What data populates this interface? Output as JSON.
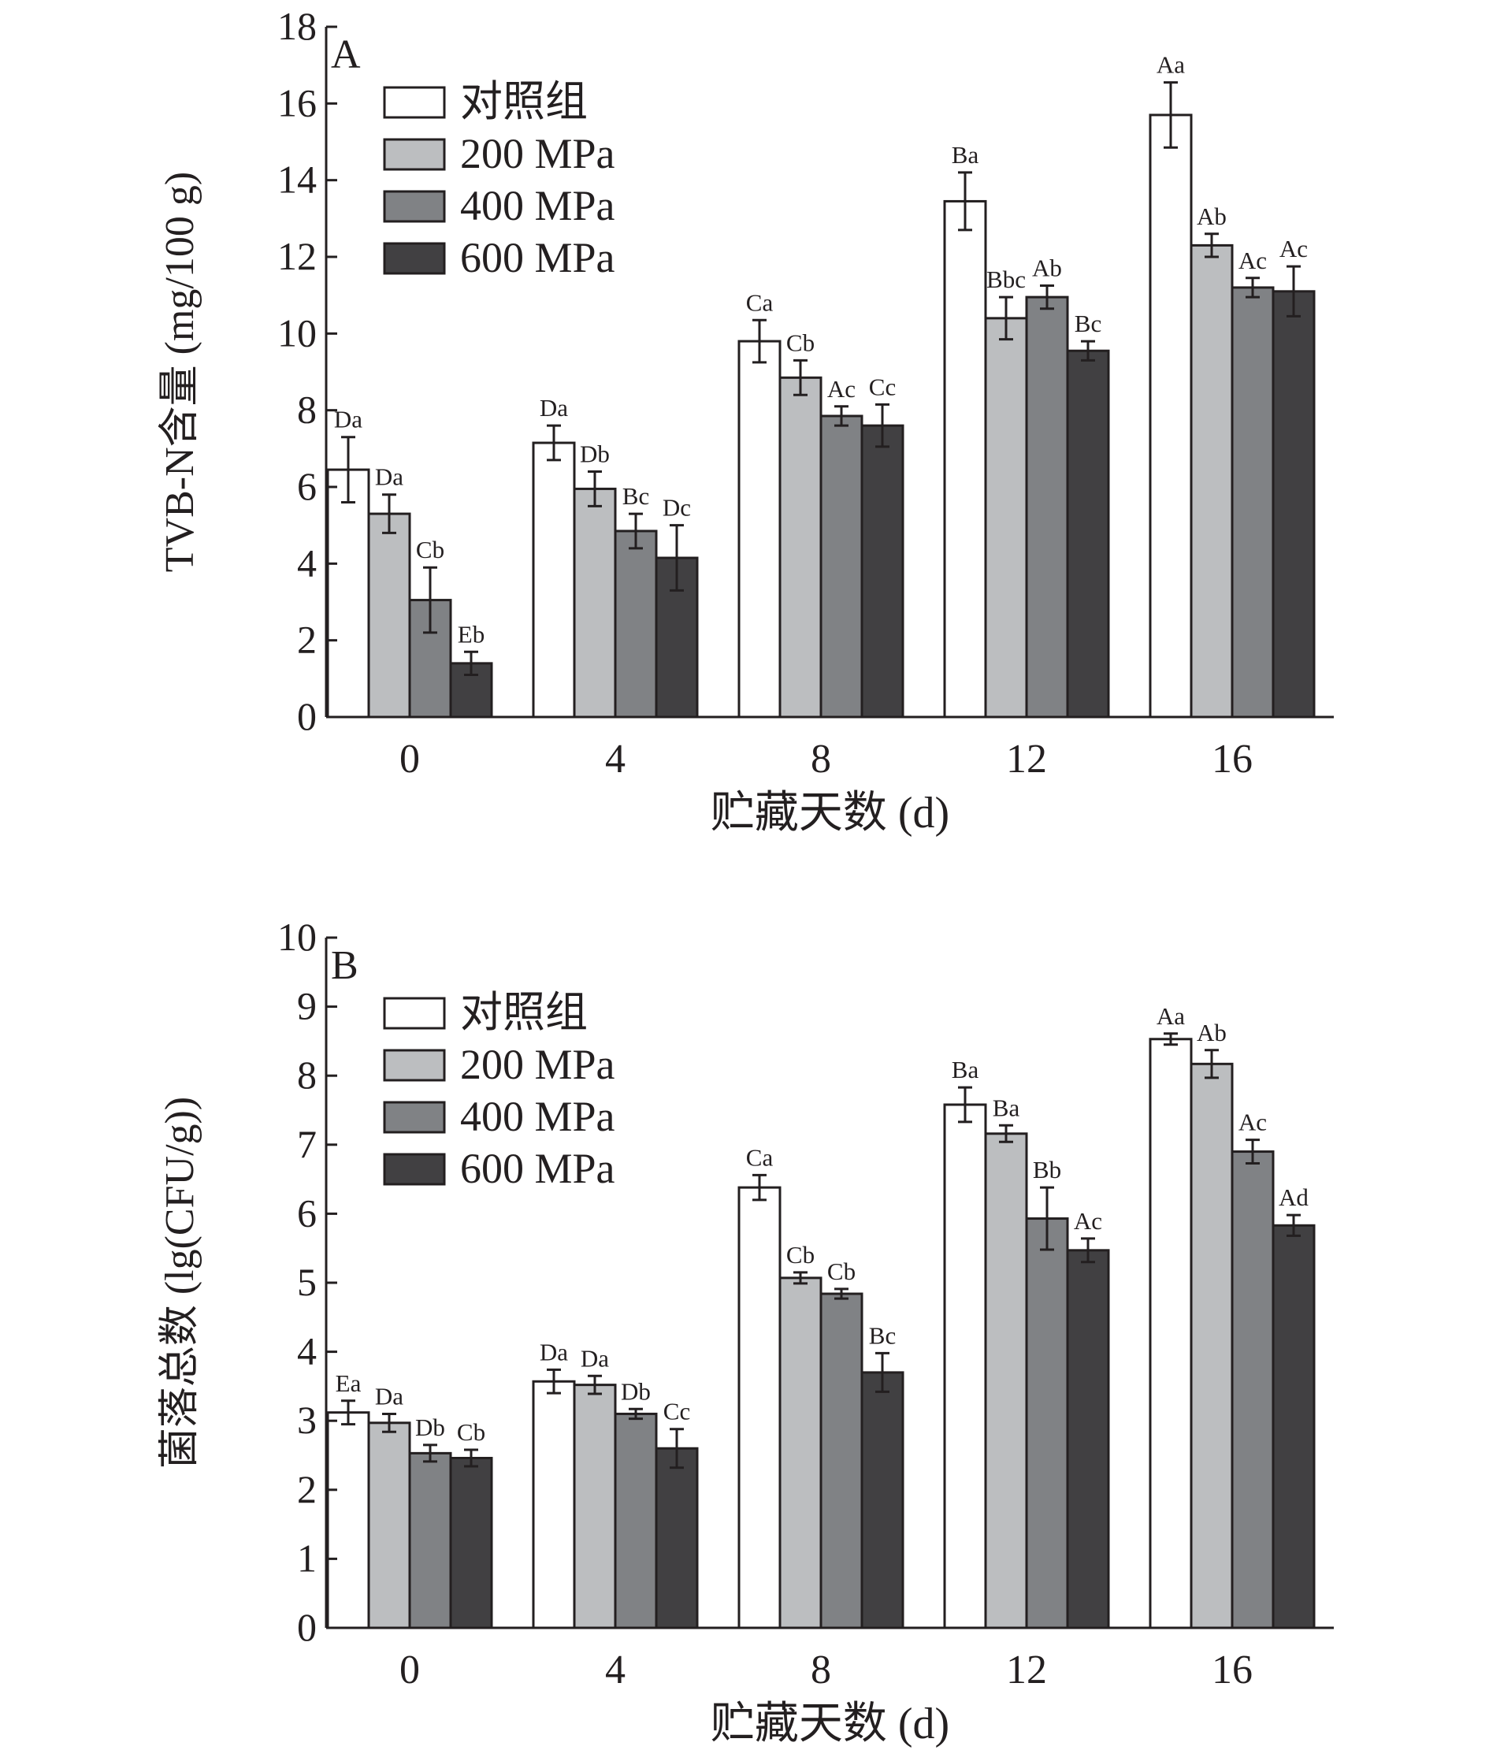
{
  "chart_data": [
    {
      "panel_label": "A",
      "type": "bar",
      "categories": [
        "0",
        "4",
        "8",
        "12",
        "16"
      ],
      "xlabel": "贮藏天数 (d)",
      "ylabel": "TVB-N含量 (mg/100 g)",
      "ylim": [
        0,
        18
      ],
      "yticks": [
        "0",
        "2",
        "4",
        "6",
        "8",
        "10",
        "12",
        "14",
        "16",
        "18"
      ],
      "legend_position": "top-left",
      "series": [
        {
          "name": "对照组",
          "color": "#ffffff",
          "values": [
            6.45,
            7.15,
            9.8,
            13.45,
            15.7
          ],
          "errors": [
            0.85,
            0.45,
            0.55,
            0.75,
            0.85
          ],
          "letters": [
            "Da",
            "Da",
            "Ca",
            "Ba",
            "Aa"
          ]
        },
        {
          "name": "200 MPa",
          "color": "#bcbec0",
          "values": [
            5.3,
            5.95,
            8.85,
            10.4,
            12.3
          ],
          "errors": [
            0.5,
            0.45,
            0.45,
            0.55,
            0.3
          ],
          "letters": [
            "Da",
            "Db",
            "Cb",
            "Bbc",
            "Ab"
          ]
        },
        {
          "name": "400 MPa",
          "color": "#808285",
          "values": [
            3.05,
            4.85,
            7.85,
            10.95,
            11.2
          ],
          "errors": [
            0.85,
            0.45,
            0.25,
            0.3,
            0.25
          ],
          "letters": [
            "Cb",
            "Bc",
            "Ac",
            "Ab",
            "Ac"
          ]
        },
        {
          "name": "600 MPa",
          "color": "#414042",
          "values": [
            1.4,
            4.15,
            7.6,
            9.55,
            11.1
          ],
          "errors": [
            0.3,
            0.85,
            0.55,
            0.25,
            0.65
          ],
          "letters": [
            "Eb",
            "Dc",
            "Cc",
            "Bc",
            "Ac"
          ]
        }
      ]
    },
    {
      "panel_label": "B",
      "type": "bar",
      "categories": [
        "0",
        "4",
        "8",
        "12",
        "16"
      ],
      "xlabel": "贮藏天数 (d)",
      "ylabel": "菌落总数 (lg(CFU/g))",
      "ylim": [
        0,
        10
      ],
      "yticks": [
        "0",
        "1",
        "2",
        "3",
        "4",
        "5",
        "6",
        "7",
        "8",
        "9",
        "10"
      ],
      "legend_position": "top-left",
      "series": [
        {
          "name": "对照组",
          "color": "#ffffff",
          "values": [
            3.12,
            3.57,
            6.38,
            7.58,
            8.53
          ],
          "errors": [
            0.17,
            0.17,
            0.18,
            0.25,
            0.08
          ],
          "letters": [
            "Ea",
            "Da",
            "Ca",
            "Ba",
            "Aa"
          ]
        },
        {
          "name": "200 MPa",
          "color": "#bcbec0",
          "values": [
            2.97,
            3.52,
            5.07,
            7.16,
            8.17
          ],
          "errors": [
            0.13,
            0.13,
            0.08,
            0.12,
            0.2
          ],
          "letters": [
            "Da",
            "Da",
            "Cb",
            "Ba",
            "Ab"
          ]
        },
        {
          "name": "400 MPa",
          "color": "#808285",
          "values": [
            2.53,
            3.1,
            4.84,
            5.93,
            6.9
          ],
          "errors": [
            0.12,
            0.07,
            0.07,
            0.45,
            0.17
          ],
          "letters": [
            "Db",
            "Db",
            "Cb",
            "Bb",
            "Ac"
          ]
        },
        {
          "name": "600 MPa",
          "color": "#414042",
          "values": [
            2.46,
            2.6,
            3.7,
            5.47,
            5.83
          ],
          "errors": [
            0.12,
            0.28,
            0.28,
            0.17,
            0.15
          ],
          "letters": [
            "Cb",
            "Cc",
            "Bc",
            "Ac",
            "Ad"
          ]
        }
      ]
    }
  ]
}
